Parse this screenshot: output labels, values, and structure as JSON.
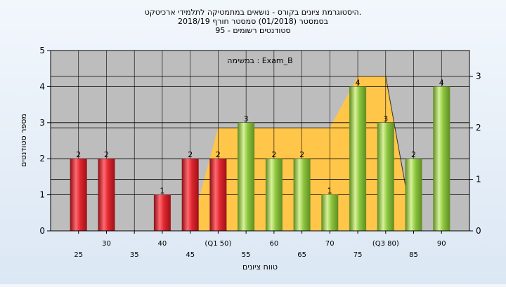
{
  "chart_data": {
    "type": "bar",
    "title_lines": [
      "היסטוגרמת ציונים בקורס - נושאים במתמטיקה לתלמידי ארכיטקט.",
      "בסמסטר  (01/2018)  סמסטר חורף  2018/19",
      "סטודנטים רשומים - 95"
    ],
    "inner_label": "במשימה : Exam_B",
    "xlabel": "טווח ציונים",
    "ylabel": "מספר סטודנטים",
    "ylim": [
      0,
      5
    ],
    "y_ticks": [
      "0",
      "1",
      "2",
      "3",
      "4",
      "5"
    ],
    "y2lim": [
      0,
      3.5
    ],
    "y2_ticks": [
      "0",
      "1",
      "2",
      "3"
    ],
    "categories": [
      25,
      30,
      35,
      40,
      45,
      50,
      55,
      60,
      65,
      70,
      75,
      80,
      85,
      90
    ],
    "x_tick_labels": [
      "25",
      "30",
      "35",
      "40",
      "45",
      "(Q1 50)",
      "55",
      "60",
      "65",
      "70",
      "75",
      "(Q3 80)",
      "85",
      "90"
    ],
    "values": [
      2,
      2,
      0,
      1,
      2,
      2,
      3,
      2,
      2,
      1,
      4,
      3,
      2,
      4
    ],
    "value_labels": [
      "2",
      "2",
      "",
      "1",
      "2",
      "2",
      "3",
      "2",
      "2",
      "1",
      "4",
      "3",
      "2",
      "4"
    ],
    "bar_groups": [
      "red",
      "red",
      "red",
      "red",
      "red",
      "red",
      "green",
      "green",
      "green",
      "green",
      "green",
      "green",
      "green",
      "green"
    ],
    "area_series": {
      "x": [
        45,
        50,
        55,
        60,
        65,
        70,
        75,
        80,
        85
      ],
      "values": [
        0,
        2,
        2,
        2,
        2,
        2,
        3,
        3,
        0
      ]
    },
    "grid": true,
    "colors": {
      "red_bar": "#d9202a",
      "green_bar": "#8cc63e",
      "area": "#ffc64a",
      "plot_bg": "#bdbdbd",
      "grid": "#000000"
    }
  }
}
